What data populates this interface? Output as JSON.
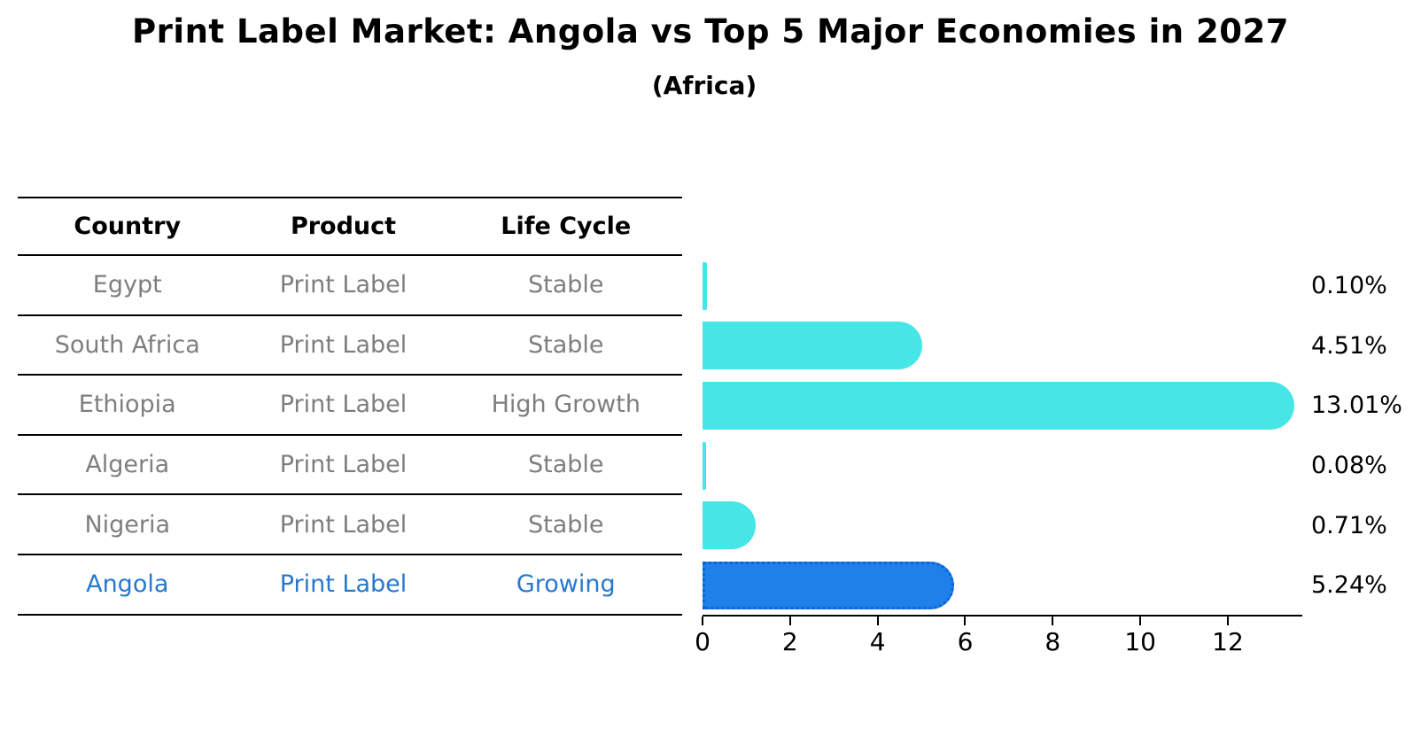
{
  "title": "Print Label Market: Angola vs Top 5 Major Economies in 2027",
  "subtitle": "(Africa)",
  "table": {
    "headers": [
      "Country",
      "Product",
      "Life Cycle"
    ],
    "rows": [
      {
        "country": "Egypt",
        "product": "Print Label",
        "life_cycle": "Stable",
        "highlight": false
      },
      {
        "country": "South Africa",
        "product": "Print Label",
        "life_cycle": "Stable",
        "highlight": false
      },
      {
        "country": "Ethiopia",
        "product": "Print Label",
        "life_cycle": "High Growth",
        "highlight": false
      },
      {
        "country": "Algeria",
        "product": "Print Label",
        "life_cycle": "Stable",
        "highlight": false
      },
      {
        "country": "Nigeria",
        "product": "Print Label",
        "life_cycle": "Stable",
        "highlight": false
      },
      {
        "country": "Angola",
        "product": "Print Label",
        "life_cycle": "Growing",
        "highlight": true
      }
    ]
  },
  "chart_data": {
    "type": "bar",
    "orientation": "horizontal",
    "title": "Print Label Market: Angola vs Top 5 Major Economies in 2027",
    "subtitle": "(Africa)",
    "categories": [
      "Egypt",
      "South Africa",
      "Ethiopia",
      "Algeria",
      "Nigeria",
      "Angola"
    ],
    "values": [
      0.1,
      4.51,
      13.01,
      0.08,
      0.71,
      5.24
    ],
    "value_labels": [
      "0.10%",
      "4.51%",
      "13.01%",
      "0.08%",
      "0.71%",
      "5.24%"
    ],
    "unit": "percent",
    "xlim": [
      0,
      13.7
    ],
    "xticks": [
      0,
      2,
      4,
      6,
      8,
      10,
      12
    ],
    "grid": false,
    "legend": "none",
    "highlight_index": 5,
    "colors": {
      "bar": "#47E6E6",
      "highlight_bar": "#1E80E8",
      "highlight_bar_border": "#0C62D8",
      "highlight_text": "#2878CE",
      "muted_text": "#7e7e7e",
      "axis": "#000000",
      "background": "#ffffff"
    }
  }
}
